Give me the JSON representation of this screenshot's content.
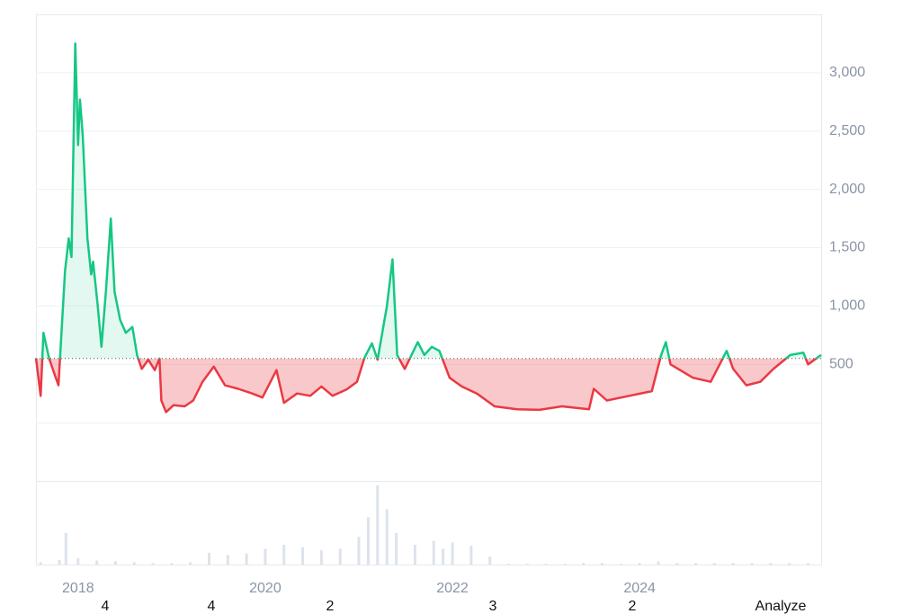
{
  "chart_data": {
    "type": "line",
    "x": [
      2017.55,
      2017.6,
      2017.63,
      2017.69,
      2017.79,
      2017.86,
      2017.9,
      2017.93,
      2017.97,
      2018.0,
      2018.02,
      2018.05,
      2018.1,
      2018.14,
      2018.16,
      2018.21,
      2018.25,
      2018.3,
      2018.35,
      2018.39,
      2018.45,
      2018.51,
      2018.58,
      2018.63,
      2018.68,
      2018.75,
      2018.82,
      2018.87,
      2018.89,
      2018.94,
      2019.02,
      2019.14,
      2019.23,
      2019.33,
      2019.45,
      2019.57,
      2019.71,
      2019.86,
      2019.97,
      2020.12,
      2020.2,
      2020.34,
      2020.48,
      2020.6,
      2020.72,
      2020.87,
      2020.98,
      2021.06,
      2021.14,
      2021.2,
      2021.3,
      2021.36,
      2021.41,
      2021.49,
      2021.63,
      2021.7,
      2021.78,
      2021.86,
      2021.97,
      2022.1,
      2022.26,
      2022.45,
      2022.69,
      2022.93,
      2023.17,
      2023.46,
      2023.51,
      2023.65,
      2023.89,
      2024.13,
      2024.23,
      2024.28,
      2024.33,
      2024.57,
      2024.76,
      2024.93,
      2025.0,
      2025.14,
      2025.29,
      2025.43,
      2025.61,
      2025.75,
      2025.8,
      2025.94
    ],
    "series": [
      {
        "values": [
          554,
          230,
          770,
          550,
          320,
          1300,
          1580,
          1420,
          3250,
          2380,
          2770,
          2460,
          1580,
          1270,
          1380,
          1000,
          650,
          1150,
          1750,
          1120,
          880,
          770,
          820,
          580,
          460,
          540,
          450,
          550,
          190,
          90,
          150,
          140,
          190,
          350,
          480,
          320,
          290,
          250,
          215,
          450,
          170,
          250,
          230,
          310,
          230,
          285,
          350,
          555,
          680,
          540,
          1000,
          1400,
          580,
          460,
          690,
          580,
          650,
          615,
          385,
          310,
          250,
          140,
          115,
          110,
          140,
          115,
          290,
          190,
          230,
          270,
          580,
          690,
          500,
          385,
          350,
          615,
          460,
          320,
          350,
          460,
          580,
          600,
          500,
          580
        ],
        "up_color": "#16c784",
        "down_color": "#ea3943"
      }
    ],
    "baseline": 550,
    "volume": {
      "x": [
        2017.6,
        2017.8,
        2017.87,
        2018.0,
        2018.2,
        2018.4,
        2018.6,
        2018.8,
        2019.0,
        2019.2,
        2019.4,
        2019.6,
        2019.8,
        2020.0,
        2020.2,
        2020.4,
        2020.6,
        2020.8,
        2021.0,
        2021.1,
        2021.2,
        2021.3,
        2021.4,
        2021.6,
        2021.8,
        2021.9,
        2022.0,
        2022.2,
        2022.4,
        2022.6,
        2022.8,
        2023.0,
        2023.2,
        2023.4,
        2023.6,
        2023.8,
        2024.0,
        2024.2,
        2024.4,
        2024.6,
        2024.8,
        2025.0,
        2025.2,
        2025.4,
        2025.6,
        2025.8
      ],
      "values": [
        3,
        6,
        40,
        8,
        5,
        4,
        3,
        2,
        2,
        3,
        15,
        12,
        14,
        20,
        25,
        22,
        18,
        20,
        35,
        60,
        100,
        70,
        40,
        25,
        30,
        20,
        28,
        24,
        10,
        1,
        1,
        1,
        1,
        2,
        2,
        1,
        2,
        4,
        2,
        2,
        2,
        2,
        2,
        2,
        2,
        2
      ],
      "color": "#dde3ec"
    },
    "xlim": [
      2017.55,
      2025.94
    ],
    "xticks": [
      2018,
      2020,
      2022,
      2024
    ],
    "ylim": [
      -500,
      3500
    ],
    "yticks": [
      500,
      {
        "value": 1000,
        "label": "1,000"
      },
      {
        "value": 1500,
        "label": "1,500"
      },
      {
        "value": 2000,
        "label": "2,000"
      },
      {
        "value": 2500,
        "label": "2,500"
      },
      {
        "value": 3000,
        "label": "3,000"
      }
    ],
    "grid": true,
    "bottom_labels": [
      "4",
      "4",
      "2",
      "3",
      "2",
      "Analyze"
    ]
  }
}
